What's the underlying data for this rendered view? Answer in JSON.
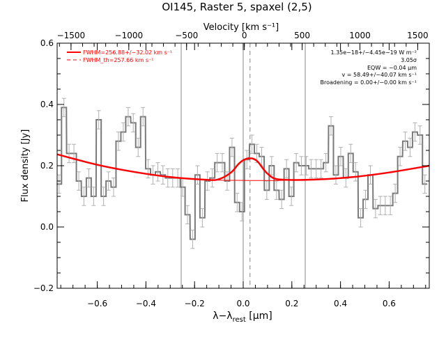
{
  "chart_data": {
    "type": "line",
    "title": "OI145, Raster 5, spaxel (2,5)",
    "top_axis": {
      "label": "Velocity [km s⁻¹]",
      "range": [
        -1620,
        1600
      ],
      "ticks": [
        -1500,
        -1000,
        -500,
        0,
        500,
        1000,
        1500
      ]
    },
    "xlabel": "λ−λ",
    "xlabel_sub": "rest",
    "xlabel_unit": " [μm]",
    "ylabel": "Flux density [Jy]",
    "xlim": [
      -0.765,
      0.765
    ],
    "ylim": [
      -0.2,
      0.6
    ],
    "xticks": [
      -0.6,
      -0.4,
      -0.2,
      0.0,
      0.2,
      0.4,
      0.6
    ],
    "xtick_labels": [
      "−0.6",
      "−0.4",
      "−0.2",
      "0.0",
      "0.2",
      "0.4",
      "0.6"
    ],
    "yticks": [
      -0.2,
      0.0,
      0.2,
      0.4,
      0.6
    ],
    "ytick_labels": [
      "−0.2",
      "0.0",
      "0.2",
      "0.4",
      "0.6"
    ],
    "grid": false,
    "legend": {
      "placement": "top-left",
      "entries": [
        {
          "text": "FWHM=256.88+/−32.02 km s⁻¹",
          "style": "solid",
          "color": "#ff0000"
        },
        {
          "text": "FWHM_th=257.66 km s⁻¹",
          "style": "dashed",
          "color": "#ff0000"
        }
      ]
    },
    "annotations": [
      "1.35e−18+/−4.45e−19 W m⁻²",
      "3.05σ",
      "EQW = −0.04 μm",
      "v = 58.49+/−40.07 km s⁻¹",
      "Broadening = 0.00+/−0.00 km s⁻¹"
    ],
    "vertical_lines": [
      {
        "x": -0.255,
        "style": "solid",
        "color": "#888888"
      },
      {
        "x": 0.0,
        "style": "solid",
        "color": "#888888"
      },
      {
        "x": 0.028,
        "style": "dashed",
        "color": "#888888"
      },
      {
        "x": 0.255,
        "style": "solid",
        "color": "#888888"
      }
    ],
    "series": [
      {
        "kind": "histogram-steps",
        "color": "#7a7a7a",
        "x": [
          -0.757,
          -0.737,
          -0.716,
          -0.696,
          -0.676,
          -0.655,
          -0.635,
          -0.615,
          -0.594,
          -0.574,
          -0.554,
          -0.533,
          -0.513,
          -0.493,
          -0.473,
          -0.452,
          -0.432,
          -0.412,
          -0.391,
          -0.371,
          -0.351,
          -0.33,
          -0.31,
          -0.29,
          -0.269,
          -0.249,
          -0.229,
          -0.208,
          -0.188,
          -0.168,
          -0.147,
          -0.127,
          -0.107,
          -0.086,
          -0.066,
          -0.046,
          -0.025,
          -0.005,
          0.015,
          0.036,
          0.056,
          0.076,
          0.097,
          0.117,
          0.137,
          0.158,
          0.178,
          0.198,
          0.218,
          0.239,
          0.259,
          0.279,
          0.3,
          0.32,
          0.34,
          0.361,
          0.381,
          0.401,
          0.422,
          0.442,
          0.462,
          0.483,
          0.503,
          0.523,
          0.544,
          0.564,
          0.584,
          0.605,
          0.625,
          0.645,
          0.666,
          0.686,
          0.706,
          0.727,
          0.747
        ],
        "y": [
          0.14,
          0.39,
          0.24,
          0.24,
          0.15,
          0.1,
          0.16,
          0.1,
          0.35,
          0.1,
          0.15,
          0.13,
          0.28,
          0.31,
          0.36,
          0.34,
          0.26,
          0.36,
          0.19,
          0.17,
          0.18,
          0.17,
          0.16,
          0.16,
          0.16,
          0.13,
          0.04,
          -0.04,
          0.17,
          0.03,
          0.15,
          0.16,
          0.21,
          0.21,
          0.15,
          0.26,
          0.08,
          0.05,
          0.22,
          0.27,
          0.24,
          0.23,
          0.12,
          0.2,
          0.12,
          0.09,
          0.19,
          0.1,
          0.21,
          0.2,
          0.2,
          0.19,
          0.19,
          0.19,
          0.21,
          0.33,
          0.17,
          0.23,
          0.16,
          0.24,
          0.18,
          0.03,
          0.09,
          0.17,
          0.06,
          0.07,
          0.07,
          0.07,
          0.11,
          0.23,
          0.28,
          0.26,
          0.31,
          0.3,
          0.14
        ],
        "err": 0.03
      },
      {
        "kind": "baseline",
        "color": "#ff0000",
        "x": [
          -0.765,
          -0.6,
          -0.45,
          -0.3,
          -0.15,
          0.0,
          0.15,
          0.3,
          0.45,
          0.6,
          0.765
        ],
        "y": [
          0.237,
          0.203,
          0.18,
          0.163,
          0.154,
          0.152,
          0.152,
          0.155,
          0.163,
          0.178,
          0.2
        ]
      },
      {
        "kind": "fit",
        "color": "#ff0000",
        "x": [
          -0.765,
          -0.6,
          -0.45,
          -0.3,
          -0.15,
          -0.1,
          -0.05,
          -0.02,
          0.0,
          0.02,
          0.028,
          0.04,
          0.06,
          0.1,
          0.15,
          0.3,
          0.45,
          0.6,
          0.765
        ],
        "y": [
          0.237,
          0.203,
          0.18,
          0.163,
          0.154,
          0.156,
          0.178,
          0.205,
          0.218,
          0.224,
          0.224,
          0.223,
          0.213,
          0.174,
          0.155,
          0.155,
          0.163,
          0.178,
          0.2
        ]
      }
    ]
  }
}
